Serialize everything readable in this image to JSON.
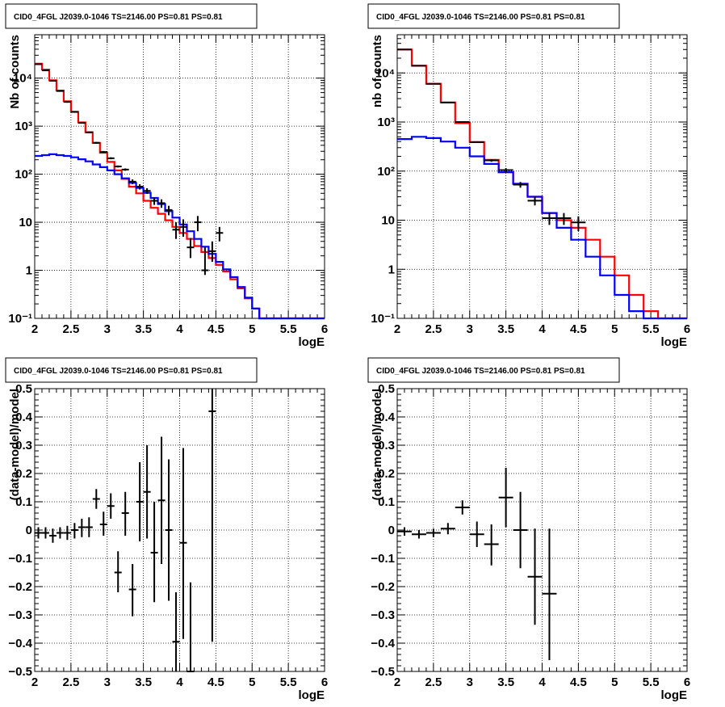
{
  "chart_data": [
    {
      "panel": "top-left",
      "type": "line",
      "title": "CID0_4FGL J2039.0-1046 TS=2146.00 PS=0.81 PS=0.81",
      "xlabel": "logE",
      "ylabel": "Nb of counts",
      "xlim": [
        2,
        6
      ],
      "ylim": [
        0.1,
        80000
      ],
      "yscale": "log",
      "grid": true,
      "x_ticks": [
        2,
        2.5,
        3,
        3.5,
        4,
        4.5,
        5,
        5.5,
        6
      ],
      "x_tick_labels": [
        "2",
        "2.5",
        "3",
        "3.5",
        "4",
        "4.5",
        "5",
        "5.5",
        "6"
      ],
      "y_ticks": [
        0.1,
        1,
        10,
        100,
        1000,
        10000
      ],
      "y_tick_labels": [
        "10⁻¹",
        "1",
        "10",
        "10²",
        "10³",
        "10⁴"
      ],
      "bin_width": 0.1,
      "series": [
        {
          "color": "#ff0000",
          "kind": "step",
          "bin_low_edges": [
            2.0,
            2.1,
            2.2,
            2.3,
            2.4,
            2.5,
            2.6,
            2.7,
            2.8,
            2.9,
            3.0,
            3.1,
            3.2,
            3.3,
            3.4,
            3.5,
            3.6,
            3.7,
            3.8,
            3.9,
            4.0,
            4.1,
            4.2,
            4.3,
            4.4,
            4.5,
            4.6,
            4.7,
            4.8,
            4.9,
            5.0,
            5.1,
            5.2,
            5.3,
            5.4,
            5.5,
            5.6,
            5.7,
            5.8,
            5.9
          ],
          "values": [
            20000,
            15000,
            9000,
            5500,
            3300,
            2000,
            1200,
            750,
            450,
            280,
            180,
            120,
            80,
            55,
            40,
            28,
            20,
            15,
            11,
            8,
            6,
            4.5,
            3.2,
            2.4,
            1.8,
            1.3,
            0.95,
            0.65,
            0.42,
            0.26,
            0.16,
            0.1,
            0.1,
            0.1,
            0.1,
            0.1,
            0.1,
            0.1,
            0.1,
            0.1
          ]
        },
        {
          "color": "#0000ff",
          "kind": "step",
          "bin_low_edges": [
            2.0,
            2.1,
            2.2,
            2.3,
            2.4,
            2.5,
            2.6,
            2.7,
            2.8,
            2.9,
            3.0,
            3.1,
            3.2,
            3.3,
            3.4,
            3.5,
            3.6,
            3.7,
            3.8,
            3.9,
            4.0,
            4.1,
            4.2,
            4.3,
            4.4,
            4.5,
            4.6,
            4.7,
            4.8,
            4.9,
            5.0,
            5.1,
            5.2,
            5.3,
            5.4,
            5.5,
            5.6,
            5.7,
            5.8,
            5.9
          ],
          "values": [
            240,
            250,
            260,
            250,
            240,
            225,
            205,
            185,
            160,
            140,
            120,
            100,
            82,
            66,
            52,
            41,
            32,
            24,
            17,
            12.5,
            9,
            6.5,
            4.5,
            3.1,
            2.2,
            1.5,
            1.05,
            0.72,
            0.45,
            0.27,
            0.16,
            0.1,
            0.1,
            0.1,
            0.1,
            0.1,
            0.1,
            0.1,
            0.1,
            0.1
          ]
        },
        {
          "color": "#000000",
          "kind": "points",
          "x": [
            2.05,
            2.15,
            2.25,
            2.35,
            2.45,
            2.55,
            2.65,
            2.75,
            2.85,
            2.95,
            3.05,
            3.15,
            3.25,
            3.35,
            3.45,
            3.55,
            3.65,
            3.75,
            3.85,
            3.95,
            4.05,
            4.15,
            4.25,
            4.35,
            4.45,
            4.55
          ],
          "y": [
            19500,
            14500,
            8800,
            5400,
            3200,
            1980,
            1170,
            745,
            450,
            290,
            215,
            145,
            125,
            70,
            55,
            45,
            28,
            25,
            18,
            7,
            8,
            3,
            10,
            1,
            2.5,
            6
          ],
          "yerr_low": [
            18800,
            14000,
            8500,
            5200,
            3080,
            1900,
            1130,
            718,
            430,
            276,
            205,
            138,
            118,
            62,
            48,
            39,
            23,
            20,
            14,
            4.5,
            5,
            1.8,
            6.5,
            0.8,
            1.5,
            4
          ],
          "yerr_high": [
            20200,
            15000,
            9100,
            5600,
            3320,
            2060,
            1210,
            772,
            470,
            304,
            225,
            152,
            132,
            78,
            62,
            51,
            33,
            30,
            22,
            10,
            11.5,
            4.7,
            13.5,
            3,
            4,
            8
          ]
        }
      ]
    },
    {
      "panel": "top-right",
      "type": "line",
      "title": "CID0_4FGL J2039.0-1046 TS=2146.00 PS=0.81 PS=0.81",
      "xlabel": "logE",
      "ylabel": "nb of counts",
      "xlim": [
        2,
        6
      ],
      "ylim": [
        0.1,
        60000
      ],
      "yscale": "log",
      "grid": true,
      "x_ticks": [
        2,
        2.5,
        3,
        3.5,
        4,
        4.5,
        5,
        5.5,
        6
      ],
      "x_tick_labels": [
        "2",
        "2.5",
        "3",
        "3.5",
        "4",
        "4.5",
        "5",
        "5.5",
        "6"
      ],
      "y_ticks": [
        0.1,
        1,
        10,
        100,
        1000,
        10000
      ],
      "y_tick_labels": [
        "10⁻¹",
        "1",
        "10",
        "10²",
        "10³",
        "10⁴"
      ],
      "bin_width": 0.2,
      "series": [
        {
          "color": "#ff0000",
          "kind": "step",
          "bin_low_edges": [
            2.0,
            2.2,
            2.4,
            2.6,
            2.8,
            3.0,
            3.2,
            3.4,
            3.6,
            3.8,
            4.0,
            4.2,
            4.4,
            4.6,
            4.8,
            5.0,
            5.2,
            5.4,
            5.6,
            5.8
          ],
          "values": [
            30000,
            14000,
            6000,
            2500,
            950,
            390,
            170,
            95,
            55,
            30,
            14,
            10,
            7,
            4,
            1.8,
            0.75,
            0.3,
            0.14,
            0.1,
            0.1
          ]
        },
        {
          "color": "#0000ff",
          "kind": "step",
          "bin_low_edges": [
            2.0,
            2.2,
            2.4,
            2.6,
            2.8,
            3.0,
            3.2,
            3.4,
            3.6,
            3.8,
            4.0,
            4.2,
            4.4,
            4.6,
            4.8,
            5.0,
            5.2,
            5.4,
            5.6,
            5.8
          ],
          "values": [
            450,
            500,
            470,
            400,
            300,
            200,
            140,
            95,
            55,
            30,
            14,
            7,
            4,
            1.8,
            0.75,
            0.3,
            0.14,
            0.1,
            0.1,
            0.1
          ]
        },
        {
          "color": "#000000",
          "kind": "points",
          "x": [
            2.1,
            2.3,
            2.5,
            2.7,
            2.9,
            3.1,
            3.3,
            3.5,
            3.7,
            3.9,
            4.1,
            4.3,
            4.5
          ],
          "y": [
            30000,
            14000,
            6000,
            2500,
            1000,
            390,
            165,
            105,
            53,
            25,
            11,
            11,
            9
          ],
          "yerr_low": [
            29700,
            13800,
            5900,
            2450,
            970,
            375,
            155,
            95,
            46,
            20,
            8,
            8,
            6
          ],
          "yerr_high": [
            30300,
            14200,
            6100,
            2550,
            1030,
            405,
            175,
            115,
            60,
            30,
            14,
            14,
            12
          ]
        }
      ]
    },
    {
      "panel": "bottom-left",
      "type": "scatter",
      "title": "CID0_4FGL J2039.0-1046 TS=2146.00 PS=0.81 PS=0.81",
      "xlabel": "logE",
      "ylabel": "(data-model)/model",
      "xlim": [
        2,
        6
      ],
      "ylim": [
        -0.5,
        0.5
      ],
      "grid": true,
      "x_ticks": [
        2,
        2.5,
        3,
        3.5,
        4,
        4.5,
        5,
        5.5,
        6
      ],
      "x_tick_labels": [
        "2",
        "2.5",
        "3",
        "3.5",
        "4",
        "4.5",
        "5",
        "5.5",
        "6"
      ],
      "y_ticks": [
        -0.5,
        -0.4,
        -0.3,
        -0.2,
        -0.1,
        0,
        0.1,
        0.2,
        0.3,
        0.4,
        0.5
      ],
      "y_tick_labels": [
        "−0.5",
        "−0.4",
        "−0.3",
        "−0.2",
        "−0.1",
        "0",
        "0.1",
        "0.2",
        "0.3",
        "0.4",
        "0.5"
      ],
      "bin_width": 0.1,
      "series": [
        {
          "color": "#000000",
          "kind": "points",
          "x": [
            2.05,
            2.15,
            2.25,
            2.35,
            2.45,
            2.55,
            2.65,
            2.75,
            2.85,
            2.95,
            3.05,
            3.15,
            3.25,
            3.35,
            3.45,
            3.55,
            3.65,
            3.75,
            3.85,
            3.95,
            4.05,
            4.15,
            4.45
          ],
          "y": [
            -0.01,
            -0.01,
            -0.02,
            -0.01,
            -0.01,
            0.0,
            0.01,
            0.01,
            0.11,
            0.02,
            0.085,
            -0.15,
            0.06,
            -0.21,
            0.1,
            0.135,
            -0.08,
            0.105,
            0.0,
            -0.395,
            -0.045,
            -0.5,
            0.42
          ],
          "yerr_low": [
            -0.03,
            -0.03,
            -0.045,
            -0.03,
            -0.035,
            -0.03,
            -0.025,
            -0.025,
            0.075,
            -0.02,
            0.04,
            -0.22,
            -0.02,
            -0.305,
            -0.04,
            -0.03,
            -0.255,
            -0.12,
            -0.25,
            -0.5,
            -0.385,
            -0.5,
            -0.395
          ],
          "yerr_high": [
            0.01,
            0.01,
            0.005,
            0.01,
            0.015,
            0.025,
            0.04,
            0.045,
            0.145,
            0.065,
            0.13,
            -0.075,
            0.135,
            -0.12,
            0.24,
            0.3,
            0.1,
            0.33,
            0.25,
            -0.22,
            0.29,
            -0.185,
            0.5
          ]
        }
      ]
    },
    {
      "panel": "bottom-right",
      "type": "scatter",
      "title": "CID0_4FGL J2039.0-1046 TS=2146.00 PS=0.81 PS=0.81",
      "xlabel": "logE",
      "ylabel": "(data-model)/model",
      "xlim": [
        2,
        6
      ],
      "ylim": [
        -0.5,
        0.5
      ],
      "grid": true,
      "x_ticks": [
        2,
        2.5,
        3,
        3.5,
        4,
        4.5,
        5,
        5.5,
        6
      ],
      "x_tick_labels": [
        "2",
        "2.5",
        "3",
        "3.5",
        "4",
        "4.5",
        "5",
        "5.5",
        "6"
      ],
      "y_ticks": [
        -0.5,
        -0.4,
        -0.3,
        -0.2,
        -0.1,
        0,
        0.1,
        0.2,
        0.3,
        0.4,
        0.5
      ],
      "y_tick_labels": [
        "−0.5",
        "−0.4",
        "−0.3",
        "−0.2",
        "−0.1",
        "0",
        "0.1",
        "0.2",
        "0.3",
        "0.4",
        "0.5"
      ],
      "bin_width": 0.2,
      "series": [
        {
          "color": "#000000",
          "kind": "points",
          "x": [
            2.1,
            2.3,
            2.5,
            2.7,
            2.9,
            3.1,
            3.3,
            3.5,
            3.7,
            3.9,
            4.1
          ],
          "y": [
            -0.005,
            -0.015,
            -0.01,
            0.005,
            0.08,
            -0.015,
            -0.05,
            0.115,
            0.0,
            -0.165,
            -0.225
          ],
          "yerr_low": [
            -0.02,
            -0.03,
            -0.025,
            -0.015,
            0.055,
            -0.06,
            -0.125,
            0.01,
            -0.135,
            -0.335,
            -0.46
          ],
          "yerr_high": [
            0.01,
            0.0,
            0.005,
            0.025,
            0.105,
            0.03,
            0.02,
            0.22,
            0.135,
            0.005,
            0.005
          ]
        }
      ]
    }
  ]
}
